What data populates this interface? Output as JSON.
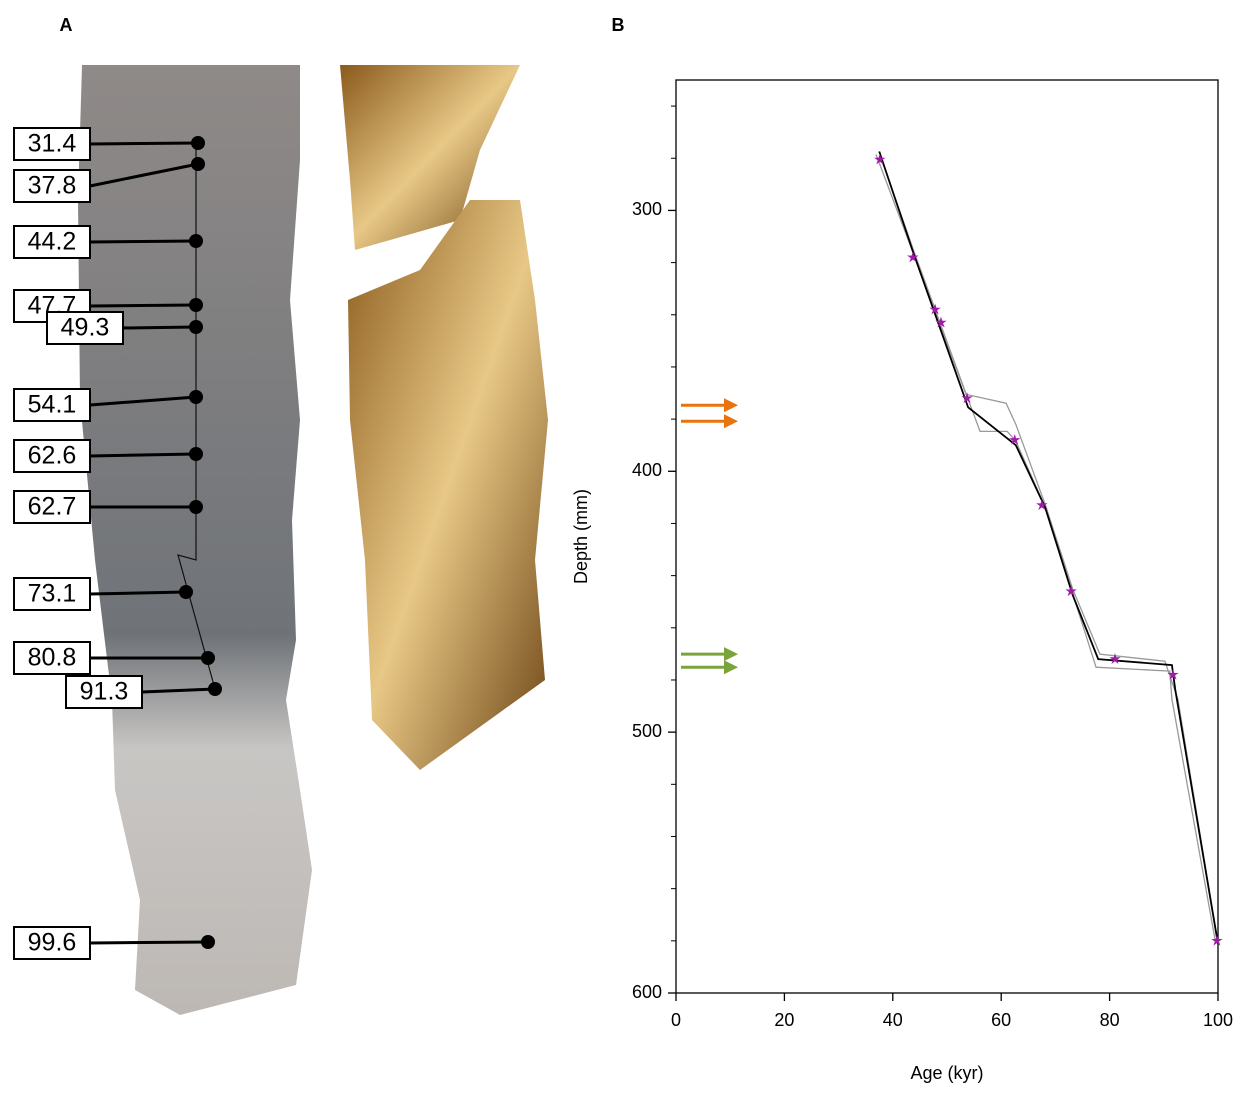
{
  "panel_labels": [
    "A",
    "B"
  ],
  "panel_a": {
    "labels": [
      "31.4",
      "37.8",
      "44.2",
      "47.7",
      "49.3",
      "54.1",
      "62.6",
      "62.7",
      "73.1",
      "80.8",
      "91.3",
      "99.6"
    ]
  },
  "chart_data": {
    "type": "line",
    "x_label": "Age (kyr)",
    "y_label": "Depth (mm)",
    "xlim": [
      0,
      100
    ],
    "xticks": [
      0,
      20,
      40,
      60,
      80,
      100
    ],
    "ylim": [
      600,
      250
    ],
    "yticks": [
      300,
      400,
      500,
      600
    ],
    "yticks_minor": [
      260,
      280,
      320,
      340,
      360,
      380,
      420,
      440,
      460,
      480,
      520,
      540,
      560,
      580
    ],
    "series": [
      {
        "color": "#999999",
        "x": [
          36.9,
          43.5,
          53.5,
          60.9,
          62.7,
          68.1,
          73.2,
          78.2,
          90.2,
          92.6,
          100
        ],
        "y": [
          278.5,
          314.9,
          370.5,
          373.9,
          382.0,
          412.6,
          445.2,
          470.1,
          472.8,
          487.4,
          581
        ]
      },
      {
        "color": "#999999",
        "x": [
          37.8,
          44.1,
          53.7,
          56.1,
          61.1,
          62.7,
          68.3,
          73.4,
          77.5,
          91.1,
          91.5,
          99.6
        ],
        "y": [
          279.7,
          316.9,
          371.3,
          384.7,
          384.7,
          388.5,
          414.6,
          448.3,
          475.1,
          476.6,
          487.4,
          581.2
        ]
      },
      {
        "color": "#000000",
        "x": [
          37.5,
          43.7,
          53.9,
          62.7,
          68.1,
          73.2,
          77.9,
          91.5,
          92.1,
          100
        ],
        "y": [
          277.4,
          315.7,
          375.5,
          390.0,
          413.8,
          447.5,
          472.0,
          474.3,
          483.5,
          581.2
        ]
      }
    ],
    "points": {
      "color": "#a01aa8",
      "x": [
        37.6,
        43.7,
        47.8,
        48.9,
        53.7,
        62.5,
        67.5,
        72.9,
        81.0,
        91.7,
        99.8
      ],
      "y": [
        280.5,
        318,
        338,
        343,
        372,
        388,
        413,
        446,
        472,
        478,
        580
      ]
    },
    "arrows": [
      {
        "depth": 374.7,
        "color": "#e8730f"
      },
      {
        "depth": 380.8,
        "color": "#e8730f"
      },
      {
        "depth": 470.1,
        "color": "#7aa33a"
      },
      {
        "depth": 475.1,
        "color": "#7aa33a"
      }
    ]
  }
}
